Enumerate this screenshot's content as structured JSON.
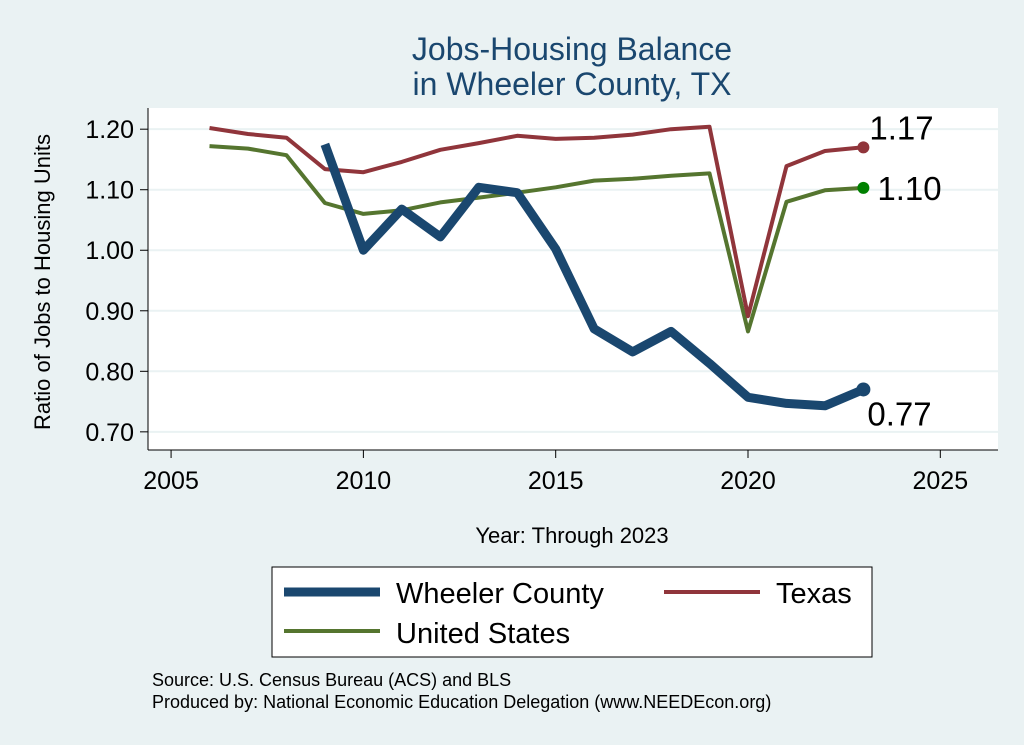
{
  "chart_data": {
    "type": "line",
    "title": [
      "Jobs-Housing Balance",
      "in Wheeler County, TX"
    ],
    "xlabel": "Year: Through 2023",
    "ylabel": "Ratio of Jobs to Housing Units",
    "xlim": [
      2004.4,
      2026.5
    ],
    "ylim": [
      0.67,
      1.235
    ],
    "xticks": [
      2005,
      2010,
      2015,
      2020,
      2025
    ],
    "xtick_labels": [
      "2005",
      "2010",
      "2015",
      "2020",
      "2025"
    ],
    "yticks": [
      0.7,
      0.8,
      0.9,
      1.0,
      1.1,
      1.2
    ],
    "ytick_labels": [
      "0.70",
      "0.80",
      "0.90",
      "1.00",
      "1.10",
      "1.20"
    ],
    "grid": true,
    "legend_position": "bottom",
    "series": [
      {
        "name": "Wheeler County",
        "color": "#1a476f",
        "x": [
          2009,
          2010,
          2011,
          2012,
          2013,
          2014,
          2015,
          2016,
          2017,
          2018,
          2019,
          2020,
          2021,
          2022,
          2023
        ],
        "values": [
          1.175,
          1.0,
          1.068,
          1.022,
          1.104,
          1.095,
          1.002,
          0.87,
          0.832,
          0.866,
          0.813,
          0.757,
          0.747,
          0.743,
          0.77
        ],
        "end_label": "0.77",
        "end_marker_color": "#1a476f"
      },
      {
        "name": "Texas",
        "color": "#90353b",
        "x": [
          2006,
          2007,
          2008,
          2009,
          2010,
          2011,
          2012,
          2013,
          2014,
          2015,
          2016,
          2017,
          2018,
          2019,
          2020,
          2021,
          2022,
          2023
        ],
        "values": [
          1.202,
          1.192,
          1.186,
          1.134,
          1.129,
          1.146,
          1.166,
          1.177,
          1.189,
          1.184,
          1.186,
          1.191,
          1.2,
          1.204,
          0.891,
          1.139,
          1.164,
          1.17
        ],
        "end_label": "1.17",
        "end_marker_color": "#90353b"
      },
      {
        "name": "United States",
        "color": "#55752f",
        "x": [
          2006,
          2007,
          2008,
          2009,
          2010,
          2011,
          2012,
          2013,
          2014,
          2015,
          2016,
          2017,
          2018,
          2019,
          2020,
          2021,
          2022,
          2023
        ],
        "values": [
          1.172,
          1.168,
          1.157,
          1.078,
          1.06,
          1.066,
          1.079,
          1.087,
          1.095,
          1.104,
          1.115,
          1.118,
          1.123,
          1.127,
          0.866,
          1.08,
          1.099,
          1.103
        ],
        "end_label": "1.10",
        "end_marker_color": "#008000"
      }
    ],
    "notes": [
      "Source: U.S. Census Bureau (ACS) and BLS",
      "Produced by: National Economic Education Delegation (www.NEEDEcon.org)"
    ]
  },
  "colors": {
    "background": "#eaf2f3",
    "plot_background": "#ffffff",
    "grid": "#eaf2f3",
    "title": "#1a476f"
  }
}
